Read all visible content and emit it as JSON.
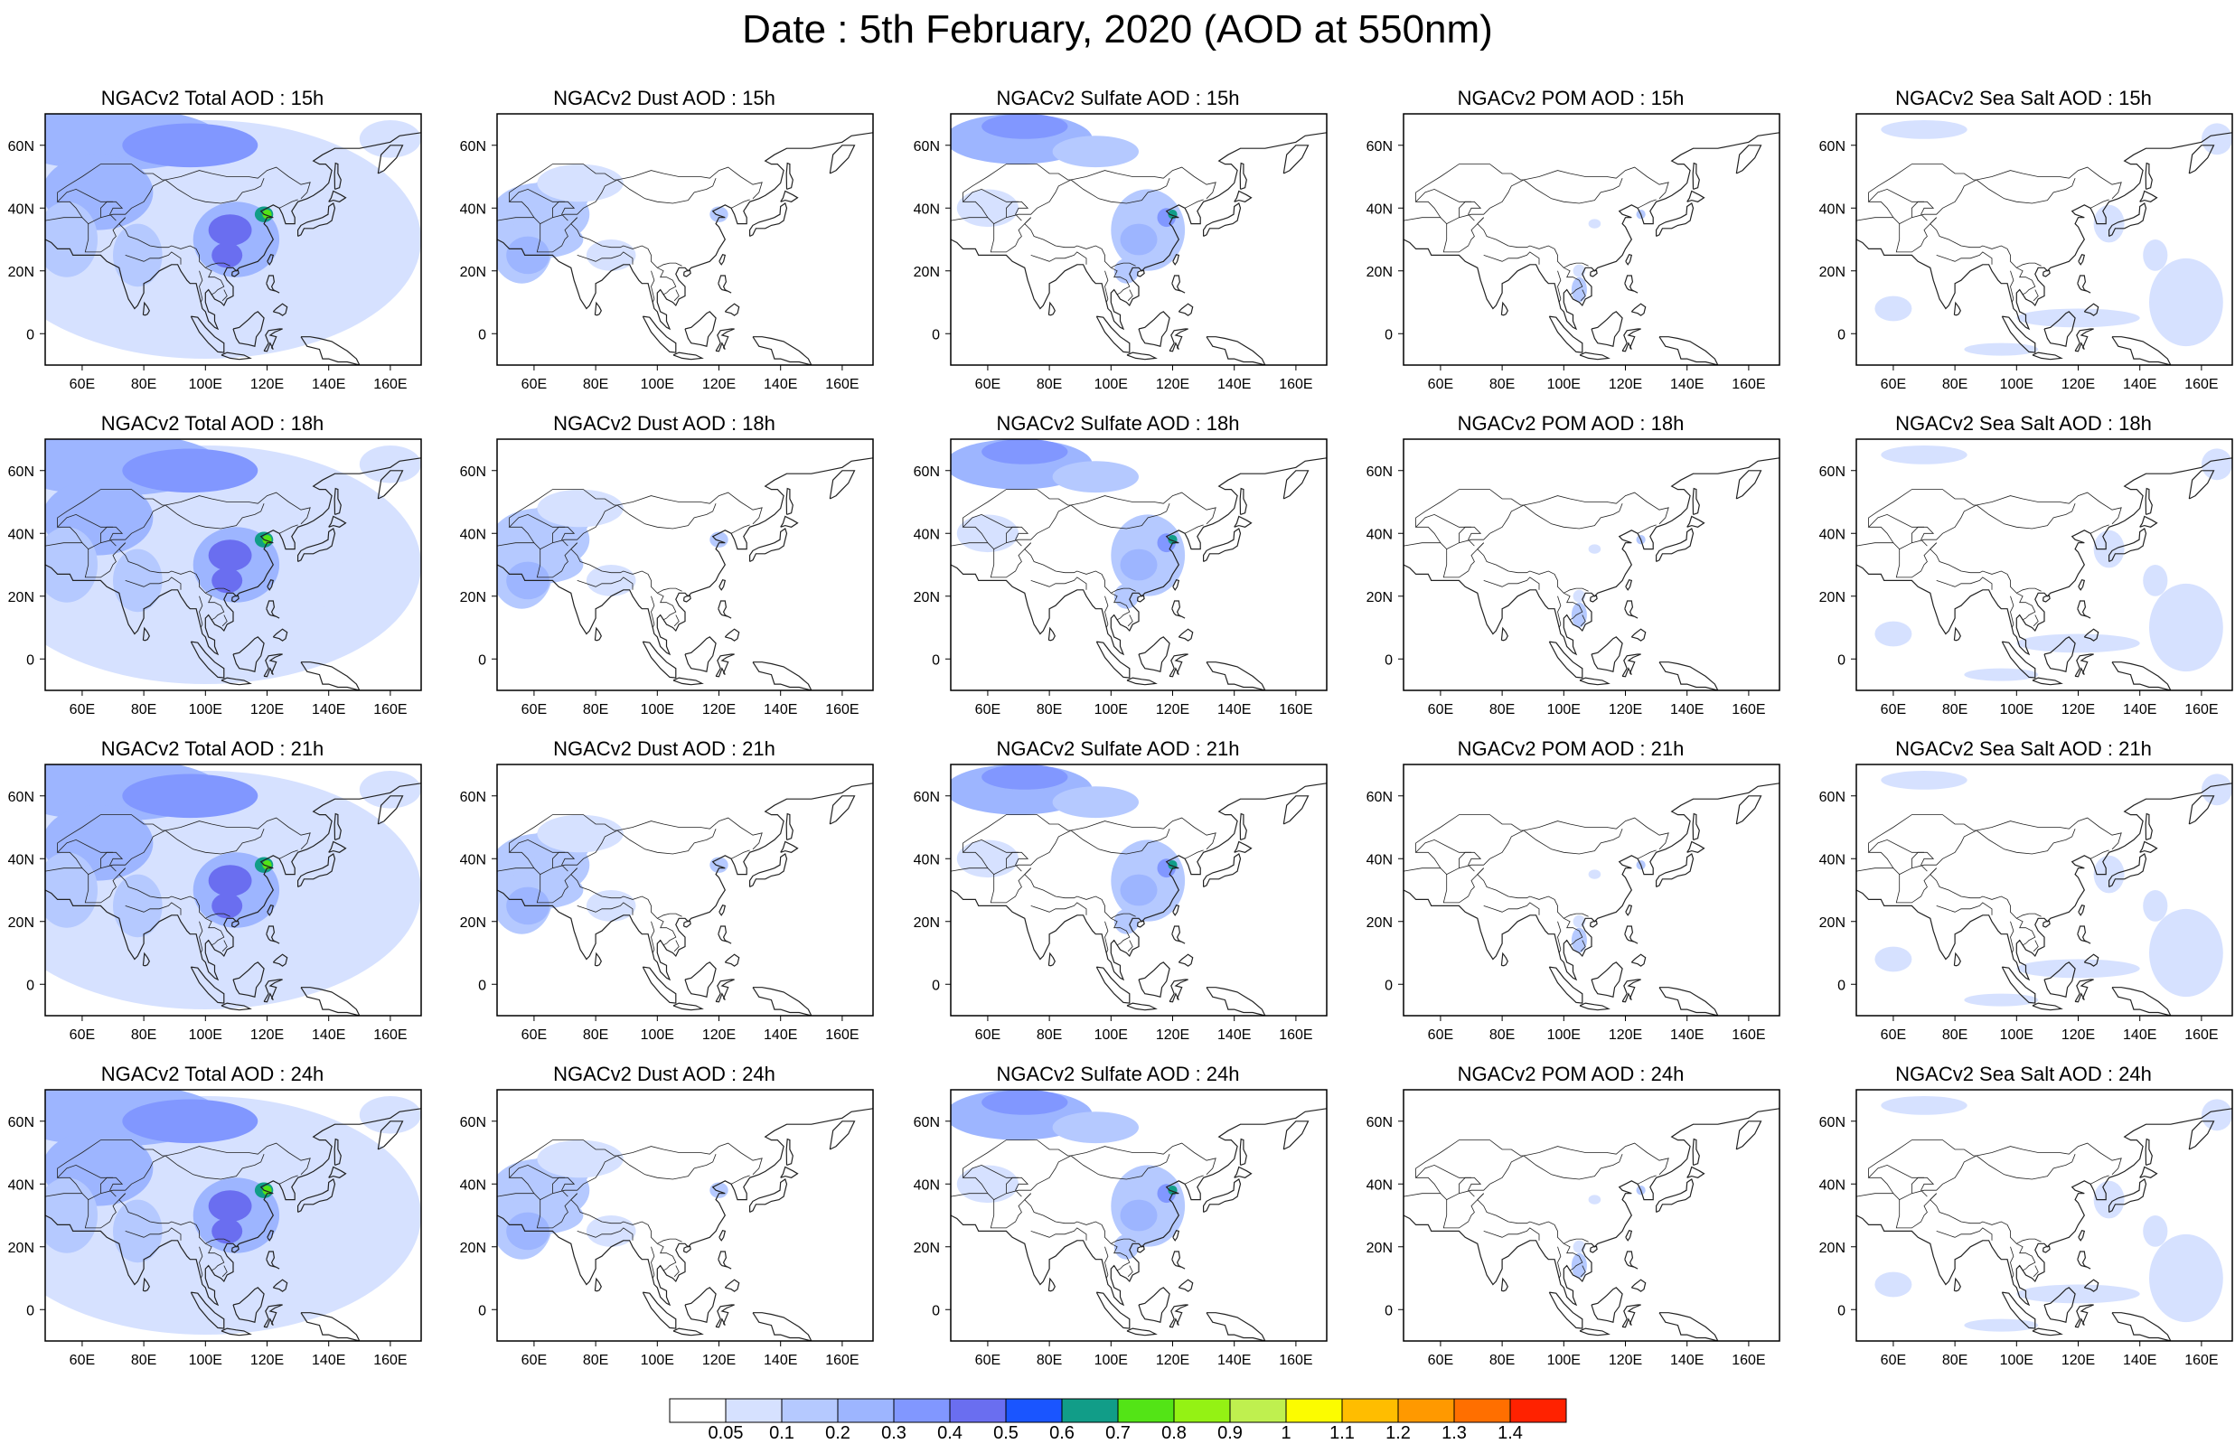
{
  "title": "Date : 5th February, 2020 (AOD at 550nm)",
  "panels": [
    {
      "title": "NGACv2 Total AOD : 15h",
      "variable": "total"
    },
    {
      "title": "NGACv2 Dust AOD : 15h",
      "variable": "dust"
    },
    {
      "title": "NGACv2 Sulfate AOD : 15h",
      "variable": "sulfate"
    },
    {
      "title": "NGACv2 POM AOD : 15h",
      "variable": "pom"
    },
    {
      "title": "NGACv2 Sea Salt AOD : 15h",
      "variable": "seasalt"
    },
    {
      "title": "NGACv2 Total AOD : 18h",
      "variable": "total"
    },
    {
      "title": "NGACv2 Dust AOD : 18h",
      "variable": "dust"
    },
    {
      "title": "NGACv2 Sulfate AOD : 18h",
      "variable": "sulfate"
    },
    {
      "title": "NGACv2 POM AOD : 18h",
      "variable": "pom"
    },
    {
      "title": "NGACv2 Sea Salt AOD : 18h",
      "variable": "seasalt"
    },
    {
      "title": "NGACv2 Total AOD : 21h",
      "variable": "total"
    },
    {
      "title": "NGACv2 Dust AOD : 21h",
      "variable": "dust"
    },
    {
      "title": "NGACv2 Sulfate AOD : 21h",
      "variable": "sulfate"
    },
    {
      "title": "NGACv2 POM AOD : 21h",
      "variable": "pom"
    },
    {
      "title": "NGACv2 Sea Salt AOD : 21h",
      "variable": "seasalt"
    },
    {
      "title": "NGACv2 Total AOD : 24h",
      "variable": "total"
    },
    {
      "title": "NGACv2 Dust AOD : 24h",
      "variable": "dust"
    },
    {
      "title": "NGACv2 Sulfate AOD : 24h",
      "variable": "sulfate"
    },
    {
      "title": "NGACv2 POM AOD : 24h",
      "variable": "pom"
    },
    {
      "title": "NGACv2 Sea Salt  AOD : 24h",
      "variable": "seasalt"
    }
  ],
  "map": {
    "lon_range": [
      48,
      170
    ],
    "lat_range": [
      -10,
      70
    ],
    "x_ticks": [
      "60E",
      "80E",
      "100E",
      "120E",
      "140E",
      "160E"
    ],
    "x_tick_values": [
      60,
      80,
      100,
      120,
      140,
      160
    ],
    "y_ticks": [
      "0",
      "20N",
      "40N",
      "60N"
    ],
    "y_tick_values": [
      0,
      20,
      40,
      60
    ]
  },
  "colorbar": {
    "labels": [
      "0.05",
      "0.1",
      "0.2",
      "0.3",
      "0.4",
      "0.5",
      "0.6",
      "0.7",
      "0.8",
      "0.9",
      "1",
      "1.1",
      "1.2",
      "1.3",
      "1.4"
    ],
    "colors": [
      "#ffffff",
      "#d6e1ff",
      "#b5c9ff",
      "#9db5ff",
      "#8197ff",
      "#6a6ef0",
      "#1a55ff",
      "#119d88",
      "#53e416",
      "#94f214",
      "#bff04f",
      "#fcfc00",
      "#ffbd00",
      "#ff9900",
      "#ff6f00",
      "#ff2200"
    ]
  }
}
